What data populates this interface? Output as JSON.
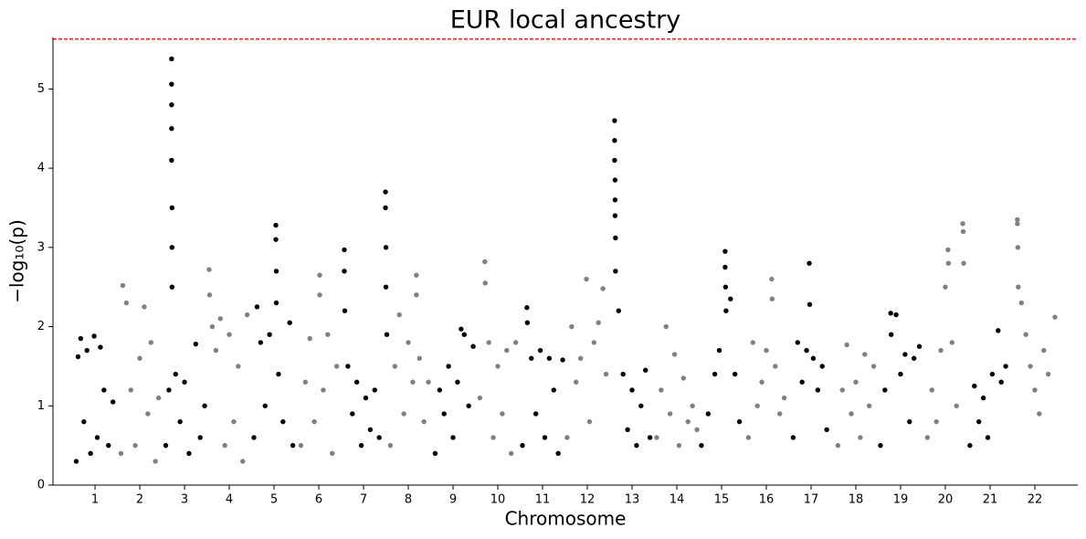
{
  "chart_data": {
    "type": "scatter",
    "title": "EUR local ancestry",
    "xlabel": "Chromosome",
    "ylabel": "−log₁₀(p)",
    "xlim": [
      0.06,
      22.96
    ],
    "ylim": [
      0,
      5.65
    ],
    "xticks": [
      1,
      2,
      3,
      4,
      5,
      6,
      7,
      8,
      9,
      10,
      11,
      12,
      13,
      14,
      15,
      16,
      17,
      18,
      19,
      20,
      21,
      22
    ],
    "yticks": [
      0,
      1,
      2,
      3,
      4,
      5
    ],
    "threshold": {
      "value": 5.63,
      "color": "#e8000b"
    },
    "series": [
      {
        "color": "#000000",
        "x": [
          0.58,
          0.62,
          0.68,
          0.75,
          0.82,
          0.9,
          0.98,
          1.05,
          1.12,
          1.2,
          1.3,
          1.4,
          2.58,
          2.65,
          2.71,
          2.71,
          2.71,
          2.71,
          2.71,
          2.72,
          2.72,
          2.72,
          2.8,
          2.9,
          3.0,
          3.1,
          3.25,
          3.35,
          3.45,
          4.55,
          4.62,
          4.7,
          4.8,
          4.9,
          5.04,
          5.04,
          5.05,
          5.05,
          5.1,
          5.2,
          5.35,
          5.42,
          6.57,
          6.57,
          6.58,
          6.65,
          6.75,
          6.85,
          6.95,
          7.05,
          7.15,
          7.25,
          7.35,
          7.49,
          7.49,
          7.5,
          7.5,
          7.52,
          8.6,
          8.7,
          8.8,
          8.9,
          9.0,
          9.1,
          9.18,
          9.25,
          9.35,
          9.45,
          10.55,
          10.65,
          10.66,
          10.75,
          10.85,
          10.95,
          11.05,
          11.15,
          11.25,
          11.35,
          11.45,
          12.61,
          12.61,
          12.61,
          12.62,
          12.62,
          12.62,
          12.63,
          12.63,
          12.7,
          12.8,
          12.9,
          13.0,
          13.1,
          13.2,
          13.3,
          13.4,
          14.55,
          14.7,
          14.85,
          14.95,
          15.08,
          15.08,
          15.09,
          15.1,
          15.2,
          15.3,
          15.4,
          16.6,
          16.7,
          16.8,
          16.9,
          16.96,
          16.97,
          17.05,
          17.15,
          17.25,
          17.35,
          18.55,
          18.65,
          18.78,
          18.79,
          18.9,
          19.0,
          19.1,
          19.2,
          19.3,
          19.42,
          20.55,
          20.65,
          20.75,
          20.85,
          20.95,
          21.05,
          21.18,
          21.25,
          21.35
        ],
        "values": [
          0.3,
          1.62,
          1.85,
          0.8,
          1.7,
          0.4,
          1.88,
          0.6,
          1.74,
          1.2,
          0.5,
          1.05,
          0.5,
          1.2,
          5.38,
          5.06,
          4.8,
          4.5,
          4.1,
          3.5,
          3.0,
          2.5,
          1.4,
          0.8,
          1.3,
          0.4,
          1.78,
          0.6,
          1.0,
          0.6,
          2.25,
          1.8,
          1.0,
          1.9,
          3.28,
          3.1,
          2.7,
          2.3,
          1.4,
          0.8,
          2.05,
          0.5,
          2.97,
          2.7,
          2.2,
          1.5,
          0.9,
          1.3,
          0.5,
          1.1,
          0.7,
          1.2,
          0.6,
          3.7,
          3.5,
          3.0,
          2.5,
          1.9,
          0.4,
          1.2,
          0.9,
          1.5,
          0.6,
          1.3,
          1.97,
          1.9,
          1.0,
          1.75,
          0.5,
          2.24,
          2.05,
          1.6,
          0.9,
          1.7,
          0.6,
          1.6,
          1.2,
          0.4,
          1.58,
          4.6,
          4.35,
          4.1,
          3.85,
          3.6,
          3.4,
          3.12,
          2.7,
          2.2,
          1.4,
          0.7,
          1.2,
          0.5,
          1.0,
          1.45,
          0.6,
          0.5,
          0.9,
          1.4,
          1.7,
          2.95,
          2.75,
          2.5,
          2.2,
          2.35,
          1.4,
          0.8,
          0.6,
          1.8,
          1.3,
          1.7,
          2.8,
          2.28,
          1.6,
          1.2,
          1.5,
          0.7,
          0.5,
          1.2,
          2.17,
          1.9,
          2.15,
          1.4,
          1.65,
          0.8,
          1.6,
          1.75,
          0.5,
          1.25,
          0.8,
          1.1,
          0.6,
          1.4,
          1.95,
          1.3,
          1.5
        ]
      },
      {
        "color": "#808080",
        "x": [
          1.58,
          1.62,
          1.7,
          1.8,
          1.9,
          2.0,
          2.1,
          2.18,
          2.25,
          2.35,
          2.42,
          3.55,
          3.56,
          3.62,
          3.7,
          3.8,
          3.9,
          4.0,
          4.1,
          4.2,
          4.3,
          4.4,
          5.6,
          5.7,
          5.8,
          5.9,
          6.02,
          6.02,
          6.1,
          6.2,
          6.3,
          6.4,
          7.6,
          7.7,
          7.8,
          7.9,
          8.0,
          8.1,
          8.18,
          8.18,
          8.25,
          8.35,
          8.45,
          9.6,
          9.71,
          9.72,
          9.8,
          9.9,
          10.0,
          10.1,
          10.2,
          10.3,
          10.4,
          11.55,
          11.65,
          11.75,
          11.85,
          11.98,
          12.05,
          12.15,
          12.25,
          12.35,
          12.42,
          13.55,
          13.65,
          13.76,
          13.85,
          13.95,
          14.05,
          14.15,
          14.25,
          14.35,
          14.45,
          15.6,
          15.7,
          15.8,
          15.9,
          16.0,
          16.12,
          16.13,
          16.2,
          16.3,
          16.4,
          17.6,
          17.7,
          17.8,
          17.9,
          18.0,
          18.1,
          18.2,
          18.3,
          18.4,
          19.6,
          19.7,
          19.8,
          19.9,
          20.0,
          20.06,
          20.07,
          20.15,
          20.25,
          20.39,
          20.4,
          20.41,
          21.61,
          21.61,
          21.62,
          21.63,
          21.7,
          21.8,
          21.9,
          22.0,
          22.1,
          22.2,
          22.3,
          22.45
        ],
        "values": [
          0.4,
          2.52,
          2.3,
          1.2,
          0.5,
          1.6,
          2.25,
          0.9,
          1.8,
          0.3,
          1.1,
          2.72,
          2.4,
          2.0,
          1.7,
          2.1,
          0.5,
          1.9,
          0.8,
          1.5,
          0.3,
          2.15,
          0.5,
          1.3,
          1.85,
          0.8,
          2.65,
          2.4,
          1.2,
          1.9,
          0.4,
          1.5,
          0.5,
          1.5,
          2.15,
          0.9,
          1.8,
          1.3,
          2.65,
          2.4,
          1.6,
          0.8,
          1.3,
          1.1,
          2.82,
          2.55,
          1.8,
          0.6,
          1.5,
          0.9,
          1.7,
          0.4,
          1.8,
          0.6,
          2.0,
          1.3,
          1.6,
          2.6,
          0.8,
          1.8,
          2.05,
          2.48,
          1.4,
          0.6,
          1.2,
          2.0,
          0.9,
          1.65,
          0.5,
          1.35,
          0.8,
          1.0,
          0.7,
          0.6,
          1.8,
          1.0,
          1.3,
          1.7,
          2.6,
          2.35,
          1.5,
          0.9,
          1.1,
          0.5,
          1.2,
          1.77,
          0.9,
          1.3,
          0.6,
          1.65,
          1.0,
          1.5,
          0.6,
          1.2,
          0.8,
          1.7,
          2.5,
          2.97,
          2.8,
          1.8,
          1.0,
          3.3,
          3.2,
          2.8,
          3.35,
          3.3,
          3.0,
          2.5,
          2.3,
          1.9,
          1.5,
          1.2,
          0.9,
          1.7,
          1.4,
          2.12
        ]
      }
    ]
  }
}
